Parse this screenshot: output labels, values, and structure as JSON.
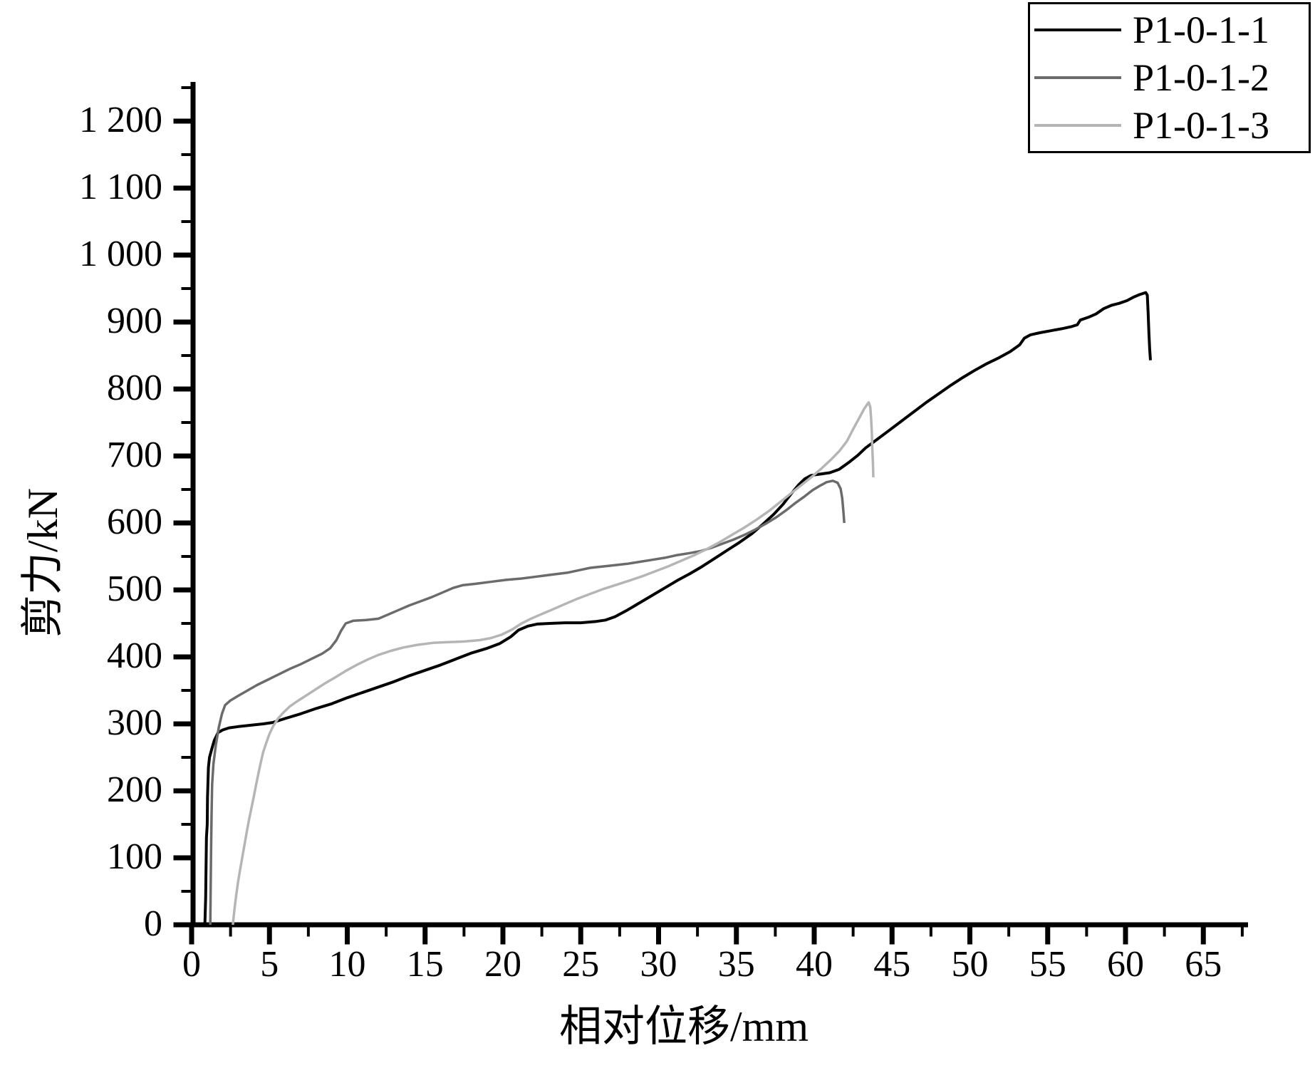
{
  "chart": {
    "x_axis_title": "相对位移/mm",
    "y_axis_title": "剪力/kN"
  },
  "legend": {
    "items": [
      {
        "label": "P1-0-1-1",
        "color": "#000000"
      },
      {
        "label": "P1-0-1-2",
        "color": "#6b6b6b"
      },
      {
        "label": "P1-0-1-3",
        "color": "#b5b5b5"
      }
    ]
  },
  "chart_data": {
    "type": "line",
    "title": "",
    "xlabel": "相对位移/mm",
    "ylabel": "剪力/kN",
    "xlim": [
      0,
      67.5
    ],
    "ylim": [
      0,
      1250
    ],
    "grid": false,
    "legend_position": "top-right",
    "x_major_ticks": [
      0,
      5,
      10,
      15,
      20,
      25,
      30,
      35,
      40,
      45,
      50,
      55,
      60,
      65
    ],
    "x_tick_labels": [
      "0",
      "5",
      "10",
      "15",
      "20",
      "25",
      "30",
      "35",
      "40",
      "45",
      "50",
      "55",
      "60",
      "65"
    ],
    "x_minor_step": 2.5,
    "y_major_ticks": [
      0,
      100,
      200,
      300,
      400,
      500,
      600,
      700,
      800,
      900,
      1000,
      1100,
      1200
    ],
    "y_tick_labels": [
      "0",
      "100",
      "200",
      "300",
      "400",
      "500",
      "600",
      "700",
      "800",
      "900",
      "1 000",
      "1 100",
      "1 200"
    ],
    "y_minor_step": 50,
    "series": [
      {
        "name": "P1-0-1-1",
        "color": "#000000",
        "width": 4,
        "points": [
          [
            0.85,
            0
          ],
          [
            0.9,
            40
          ],
          [
            0.93,
            90
          ],
          [
            0.95,
            130
          ],
          [
            1.0,
            150
          ],
          [
            1.02,
            190
          ],
          [
            1.08,
            235
          ],
          [
            1.15,
            250
          ],
          [
            1.3,
            263
          ],
          [
            1.45,
            275
          ],
          [
            1.7,
            287
          ],
          [
            2.0,
            291
          ],
          [
            2.4,
            294
          ],
          [
            3.0,
            296
          ],
          [
            3.8,
            298
          ],
          [
            4.6,
            300
          ],
          [
            5.2,
            302
          ],
          [
            6.0,
            308
          ],
          [
            7.0,
            315
          ],
          [
            8.0,
            323
          ],
          [
            9.0,
            330
          ],
          [
            10.0,
            339
          ],
          [
            11.0,
            347
          ],
          [
            12.0,
            355
          ],
          [
            13.0,
            363
          ],
          [
            14.0,
            372
          ],
          [
            15.0,
            380
          ],
          [
            16.0,
            388
          ],
          [
            17.0,
            397
          ],
          [
            18.0,
            406
          ],
          [
            19.0,
            413
          ],
          [
            19.8,
            420
          ],
          [
            20.5,
            430
          ],
          [
            21.0,
            440
          ],
          [
            21.6,
            446
          ],
          [
            22.2,
            449
          ],
          [
            23.0,
            450
          ],
          [
            24.0,
            451
          ],
          [
            25.0,
            451
          ],
          [
            26.0,
            453
          ],
          [
            26.6,
            455
          ],
          [
            27.2,
            460
          ],
          [
            28.0,
            470
          ],
          [
            28.8,
            481
          ],
          [
            29.6,
            492
          ],
          [
            30.4,
            503
          ],
          [
            31.2,
            514
          ],
          [
            32.0,
            524
          ],
          [
            32.8,
            535
          ],
          [
            33.6,
            547
          ],
          [
            34.4,
            559
          ],
          [
            35.2,
            571
          ],
          [
            36.0,
            584
          ],
          [
            36.7,
            598
          ],
          [
            37.4,
            613
          ],
          [
            38.0,
            628
          ],
          [
            38.5,
            643
          ],
          [
            39.0,
            657
          ],
          [
            39.4,
            666
          ],
          [
            39.8,
            671
          ],
          [
            40.4,
            673
          ],
          [
            41.0,
            675
          ],
          [
            41.6,
            680
          ],
          [
            42.2,
            690
          ],
          [
            42.8,
            701
          ],
          [
            43.3,
            712
          ],
          [
            44.0,
            724
          ],
          [
            44.8,
            738
          ],
          [
            45.6,
            752
          ],
          [
            46.4,
            766
          ],
          [
            47.2,
            780
          ],
          [
            48.0,
            793
          ],
          [
            48.8,
            806
          ],
          [
            49.6,
            818
          ],
          [
            50.4,
            829
          ],
          [
            51.1,
            838
          ],
          [
            51.9,
            847
          ],
          [
            52.6,
            856
          ],
          [
            53.2,
            866
          ],
          [
            53.5,
            876
          ],
          [
            53.9,
            881
          ],
          [
            54.5,
            884
          ],
          [
            55.2,
            887
          ],
          [
            55.9,
            890
          ],
          [
            56.5,
            893
          ],
          [
            56.9,
            896
          ],
          [
            57.1,
            903
          ],
          [
            57.6,
            907
          ],
          [
            58.1,
            912
          ],
          [
            58.6,
            920
          ],
          [
            59.1,
            925
          ],
          [
            59.6,
            928
          ],
          [
            60.1,
            932
          ],
          [
            60.5,
            937
          ],
          [
            60.9,
            941
          ],
          [
            61.3,
            944
          ],
          [
            61.4,
            940
          ],
          [
            61.45,
            915
          ],
          [
            61.5,
            885
          ],
          [
            61.55,
            860
          ],
          [
            61.6,
            843
          ]
        ]
      },
      {
        "name": "P1-0-1-2",
        "color": "#6b6b6b",
        "width": 3.5,
        "points": [
          [
            1.2,
            0
          ],
          [
            1.22,
            50
          ],
          [
            1.25,
            110
          ],
          [
            1.28,
            165
          ],
          [
            1.32,
            210
          ],
          [
            1.4,
            240
          ],
          [
            1.55,
            268
          ],
          [
            1.75,
            295
          ],
          [
            1.95,
            315
          ],
          [
            2.15,
            328
          ],
          [
            2.5,
            335
          ],
          [
            3.0,
            342
          ],
          [
            3.6,
            350
          ],
          [
            4.2,
            358
          ],
          [
            4.9,
            366
          ],
          [
            5.6,
            374
          ],
          [
            6.3,
            382
          ],
          [
            7.0,
            389
          ],
          [
            7.7,
            397
          ],
          [
            8.4,
            405
          ],
          [
            8.9,
            413
          ],
          [
            9.3,
            425
          ],
          [
            9.6,
            439
          ],
          [
            9.9,
            450
          ],
          [
            10.4,
            454
          ],
          [
            11.2,
            455
          ],
          [
            12.0,
            457
          ],
          [
            12.6,
            463
          ],
          [
            13.3,
            470
          ],
          [
            14.0,
            477
          ],
          [
            14.7,
            483
          ],
          [
            15.4,
            489
          ],
          [
            16.1,
            496
          ],
          [
            16.8,
            503
          ],
          [
            17.4,
            507
          ],
          [
            18.2,
            509
          ],
          [
            19.2,
            512
          ],
          [
            20.2,
            515
          ],
          [
            21.2,
            517
          ],
          [
            22.2,
            520
          ],
          [
            23.2,
            523
          ],
          [
            24.2,
            526
          ],
          [
            25.0,
            530
          ],
          [
            25.6,
            533
          ],
          [
            26.4,
            535
          ],
          [
            27.2,
            537
          ],
          [
            28.0,
            539
          ],
          [
            28.8,
            542
          ],
          [
            29.6,
            545
          ],
          [
            30.4,
            548
          ],
          [
            31.2,
            552
          ],
          [
            32.0,
            555
          ],
          [
            32.7,
            558
          ],
          [
            33.4,
            563
          ],
          [
            34.1,
            569
          ],
          [
            34.8,
            575
          ],
          [
            35.5,
            582
          ],
          [
            36.2,
            590
          ],
          [
            36.9,
            599
          ],
          [
            37.6,
            609
          ],
          [
            38.2,
            619
          ],
          [
            38.8,
            630
          ],
          [
            39.4,
            640
          ],
          [
            39.9,
            649
          ],
          [
            40.4,
            656
          ],
          [
            40.8,
            661
          ],
          [
            41.2,
            663
          ],
          [
            41.5,
            660
          ],
          [
            41.7,
            651
          ],
          [
            41.8,
            637
          ],
          [
            41.87,
            618
          ],
          [
            41.93,
            600
          ]
        ]
      },
      {
        "name": "P1-0-1-3",
        "color": "#b5b5b5",
        "width": 3.5,
        "points": [
          [
            2.65,
            0
          ],
          [
            2.7,
            12
          ],
          [
            2.78,
            28
          ],
          [
            2.87,
            45
          ],
          [
            2.97,
            62
          ],
          [
            3.1,
            80
          ],
          [
            3.25,
            100
          ],
          [
            3.4,
            120
          ],
          [
            3.55,
            140
          ],
          [
            3.7,
            158
          ],
          [
            3.85,
            175
          ],
          [
            4.0,
            192
          ],
          [
            4.15,
            210
          ],
          [
            4.3,
            227
          ],
          [
            4.45,
            243
          ],
          [
            4.6,
            258
          ],
          [
            4.8,
            272
          ],
          [
            5.0,
            285
          ],
          [
            5.25,
            297
          ],
          [
            5.55,
            308
          ],
          [
            5.9,
            317
          ],
          [
            6.3,
            326
          ],
          [
            6.8,
            334
          ],
          [
            7.4,
            343
          ],
          [
            8.0,
            352
          ],
          [
            8.6,
            361
          ],
          [
            9.2,
            369
          ],
          [
            9.9,
            379
          ],
          [
            10.6,
            388
          ],
          [
            11.3,
            396
          ],
          [
            12.0,
            403
          ],
          [
            12.8,
            409
          ],
          [
            13.6,
            414
          ],
          [
            14.5,
            418
          ],
          [
            15.5,
            421
          ],
          [
            16.5,
            422
          ],
          [
            17.5,
            423
          ],
          [
            18.5,
            425
          ],
          [
            19.2,
            428
          ],
          [
            19.9,
            433
          ],
          [
            20.6,
            441
          ],
          [
            21.2,
            450
          ],
          [
            21.8,
            457
          ],
          [
            22.5,
            464
          ],
          [
            23.2,
            471
          ],
          [
            24.0,
            479
          ],
          [
            24.8,
            487
          ],
          [
            25.6,
            494
          ],
          [
            26.4,
            501
          ],
          [
            27.2,
            507
          ],
          [
            28.0,
            513
          ],
          [
            28.9,
            520
          ],
          [
            29.8,
            528
          ],
          [
            30.7,
            536
          ],
          [
            31.5,
            544
          ],
          [
            32.3,
            552
          ],
          [
            33.1,
            561
          ],
          [
            33.9,
            571
          ],
          [
            34.7,
            582
          ],
          [
            35.5,
            593
          ],
          [
            36.3,
            605
          ],
          [
            37.1,
            618
          ],
          [
            37.8,
            631
          ],
          [
            38.5,
            644
          ],
          [
            39.2,
            657
          ],
          [
            39.9,
            670
          ],
          [
            40.5,
            682
          ],
          [
            41.1,
            695
          ],
          [
            41.6,
            707
          ],
          [
            42.1,
            722
          ],
          [
            42.5,
            740
          ],
          [
            42.9,
            757
          ],
          [
            43.2,
            770
          ],
          [
            43.4,
            777
          ],
          [
            43.5,
            780
          ],
          [
            43.6,
            773
          ],
          [
            43.65,
            757
          ],
          [
            43.7,
            737
          ],
          [
            43.73,
            713
          ],
          [
            43.77,
            690
          ],
          [
            43.8,
            668
          ]
        ]
      }
    ]
  }
}
